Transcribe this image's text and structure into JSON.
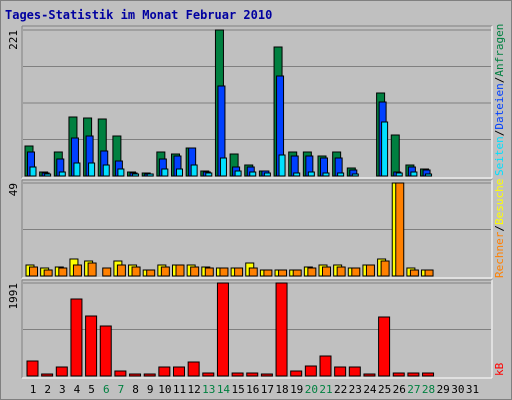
{
  "title": "Tages-Statistik im Monat Februar 2010",
  "right_labels": {
    "top": {
      "anfragen": "Anfragen",
      "dateien": "Dateien",
      "seiten": "Seiten",
      "sep": "/"
    },
    "mid": {
      "besuche": "Besuche",
      "rechner": "Rechner",
      "sep": "/"
    },
    "bottom": {
      "kb": "kB"
    }
  },
  "colors": {
    "anfragen": "#008040",
    "dateien": "#0040ff",
    "seiten": "#00e0ff",
    "besuche": "#ffff00",
    "rechner": "#ff8000",
    "kb": "#ff0000",
    "weekend_day": "#008040",
    "weekday": "#000000",
    "title": "#0000a0"
  },
  "chart_data": [
    {
      "type": "bar",
      "title": "Tages-Statistik im Monat Februar 2010",
      "categories": [
        "1",
        "2",
        "3",
        "4",
        "5",
        "6",
        "7",
        "8",
        "9",
        "10",
        "11",
        "12",
        "13",
        "14",
        "15",
        "16",
        "17",
        "18",
        "19",
        "20",
        "21",
        "22",
        "23",
        "24",
        "25",
        "26",
        "27",
        "28",
        "29",
        "30",
        "31"
      ],
      "weekend_days": [
        "6",
        "7",
        "13",
        "14",
        "20",
        "21",
        "27",
        "28"
      ],
      "ylabel": "221",
      "ylim": [
        0,
        221
      ],
      "series": [
        {
          "name": "Anfragen",
          "values": [
            45,
            6,
            36,
            90,
            88,
            86,
            60,
            6,
            5,
            36,
            34,
            42,
            8,
            221,
            33,
            16,
            8,
            195,
            37,
            36,
            30,
            36,
            12,
            0,
            126,
            62,
            16,
            10,
            0,
            0,
            0
          ]
        },
        {
          "name": "Dateien",
          "values": [
            37,
            4,
            26,
            58,
            60,
            38,
            22,
            4,
            3,
            26,
            30,
            42,
            6,
            136,
            14,
            13,
            8,
            152,
            30,
            30,
            28,
            28,
            9,
            0,
            112,
            6,
            14,
            9,
            0,
            0,
            0
          ]
        },
        {
          "name": "Seiten",
          "values": [
            14,
            2,
            6,
            19,
            20,
            16,
            10,
            2,
            2,
            10,
            10,
            16,
            4,
            28,
            8,
            6,
            4,
            32,
            4,
            6,
            4,
            4,
            2,
            0,
            82,
            4,
            6,
            2,
            0,
            0,
            0
          ]
        }
      ]
    },
    {
      "type": "bar",
      "categories": [
        "1",
        "2",
        "3",
        "4",
        "5",
        "6",
        "7",
        "8",
        "9",
        "10",
        "11",
        "12",
        "13",
        "14",
        "15",
        "16",
        "17",
        "18",
        "19",
        "20",
        "21",
        "22",
        "23",
        "24",
        "25",
        "26",
        "27",
        "28",
        "29",
        "30",
        "31"
      ],
      "ylabel": "49",
      "ylim": [
        0,
        49
      ],
      "series": [
        {
          "name": "Besuche",
          "values": [
            6,
            4,
            5,
            9,
            8,
            0,
            8,
            6,
            3,
            6,
            6,
            6,
            5,
            4,
            4,
            7,
            3,
            3,
            3,
            5,
            6,
            6,
            4,
            6,
            9,
            49,
            4,
            3,
            0,
            0,
            0
          ]
        },
        {
          "name": "Rechner",
          "values": [
            5,
            3,
            4,
            6,
            7,
            4,
            6,
            5,
            3,
            5,
            6,
            5,
            4,
            4,
            4,
            4,
            3,
            3,
            3,
            4,
            5,
            5,
            4,
            6,
            8,
            49,
            3,
            3,
            0,
            0,
            0
          ]
        }
      ]
    },
    {
      "type": "bar",
      "categories": [
        "1",
        "2",
        "3",
        "4",
        "5",
        "6",
        "7",
        "8",
        "9",
        "10",
        "11",
        "12",
        "13",
        "14",
        "15",
        "16",
        "17",
        "18",
        "19",
        "20",
        "21",
        "22",
        "23",
        "24",
        "25",
        "26",
        "27",
        "28",
        "29",
        "30",
        "31"
      ],
      "ylabel": "1991",
      "ylim": [
        0,
        1991
      ],
      "series": [
        {
          "name": "kB",
          "values": [
            320,
            30,
            200,
            1640,
            1280,
            1080,
            100,
            30,
            30,
            200,
            200,
            300,
            60,
            1991,
            60,
            60,
            30,
            1991,
            100,
            220,
            420,
            200,
            200,
            40,
            1260,
            60,
            60,
            60,
            0,
            0,
            0
          ]
        }
      ]
    }
  ]
}
